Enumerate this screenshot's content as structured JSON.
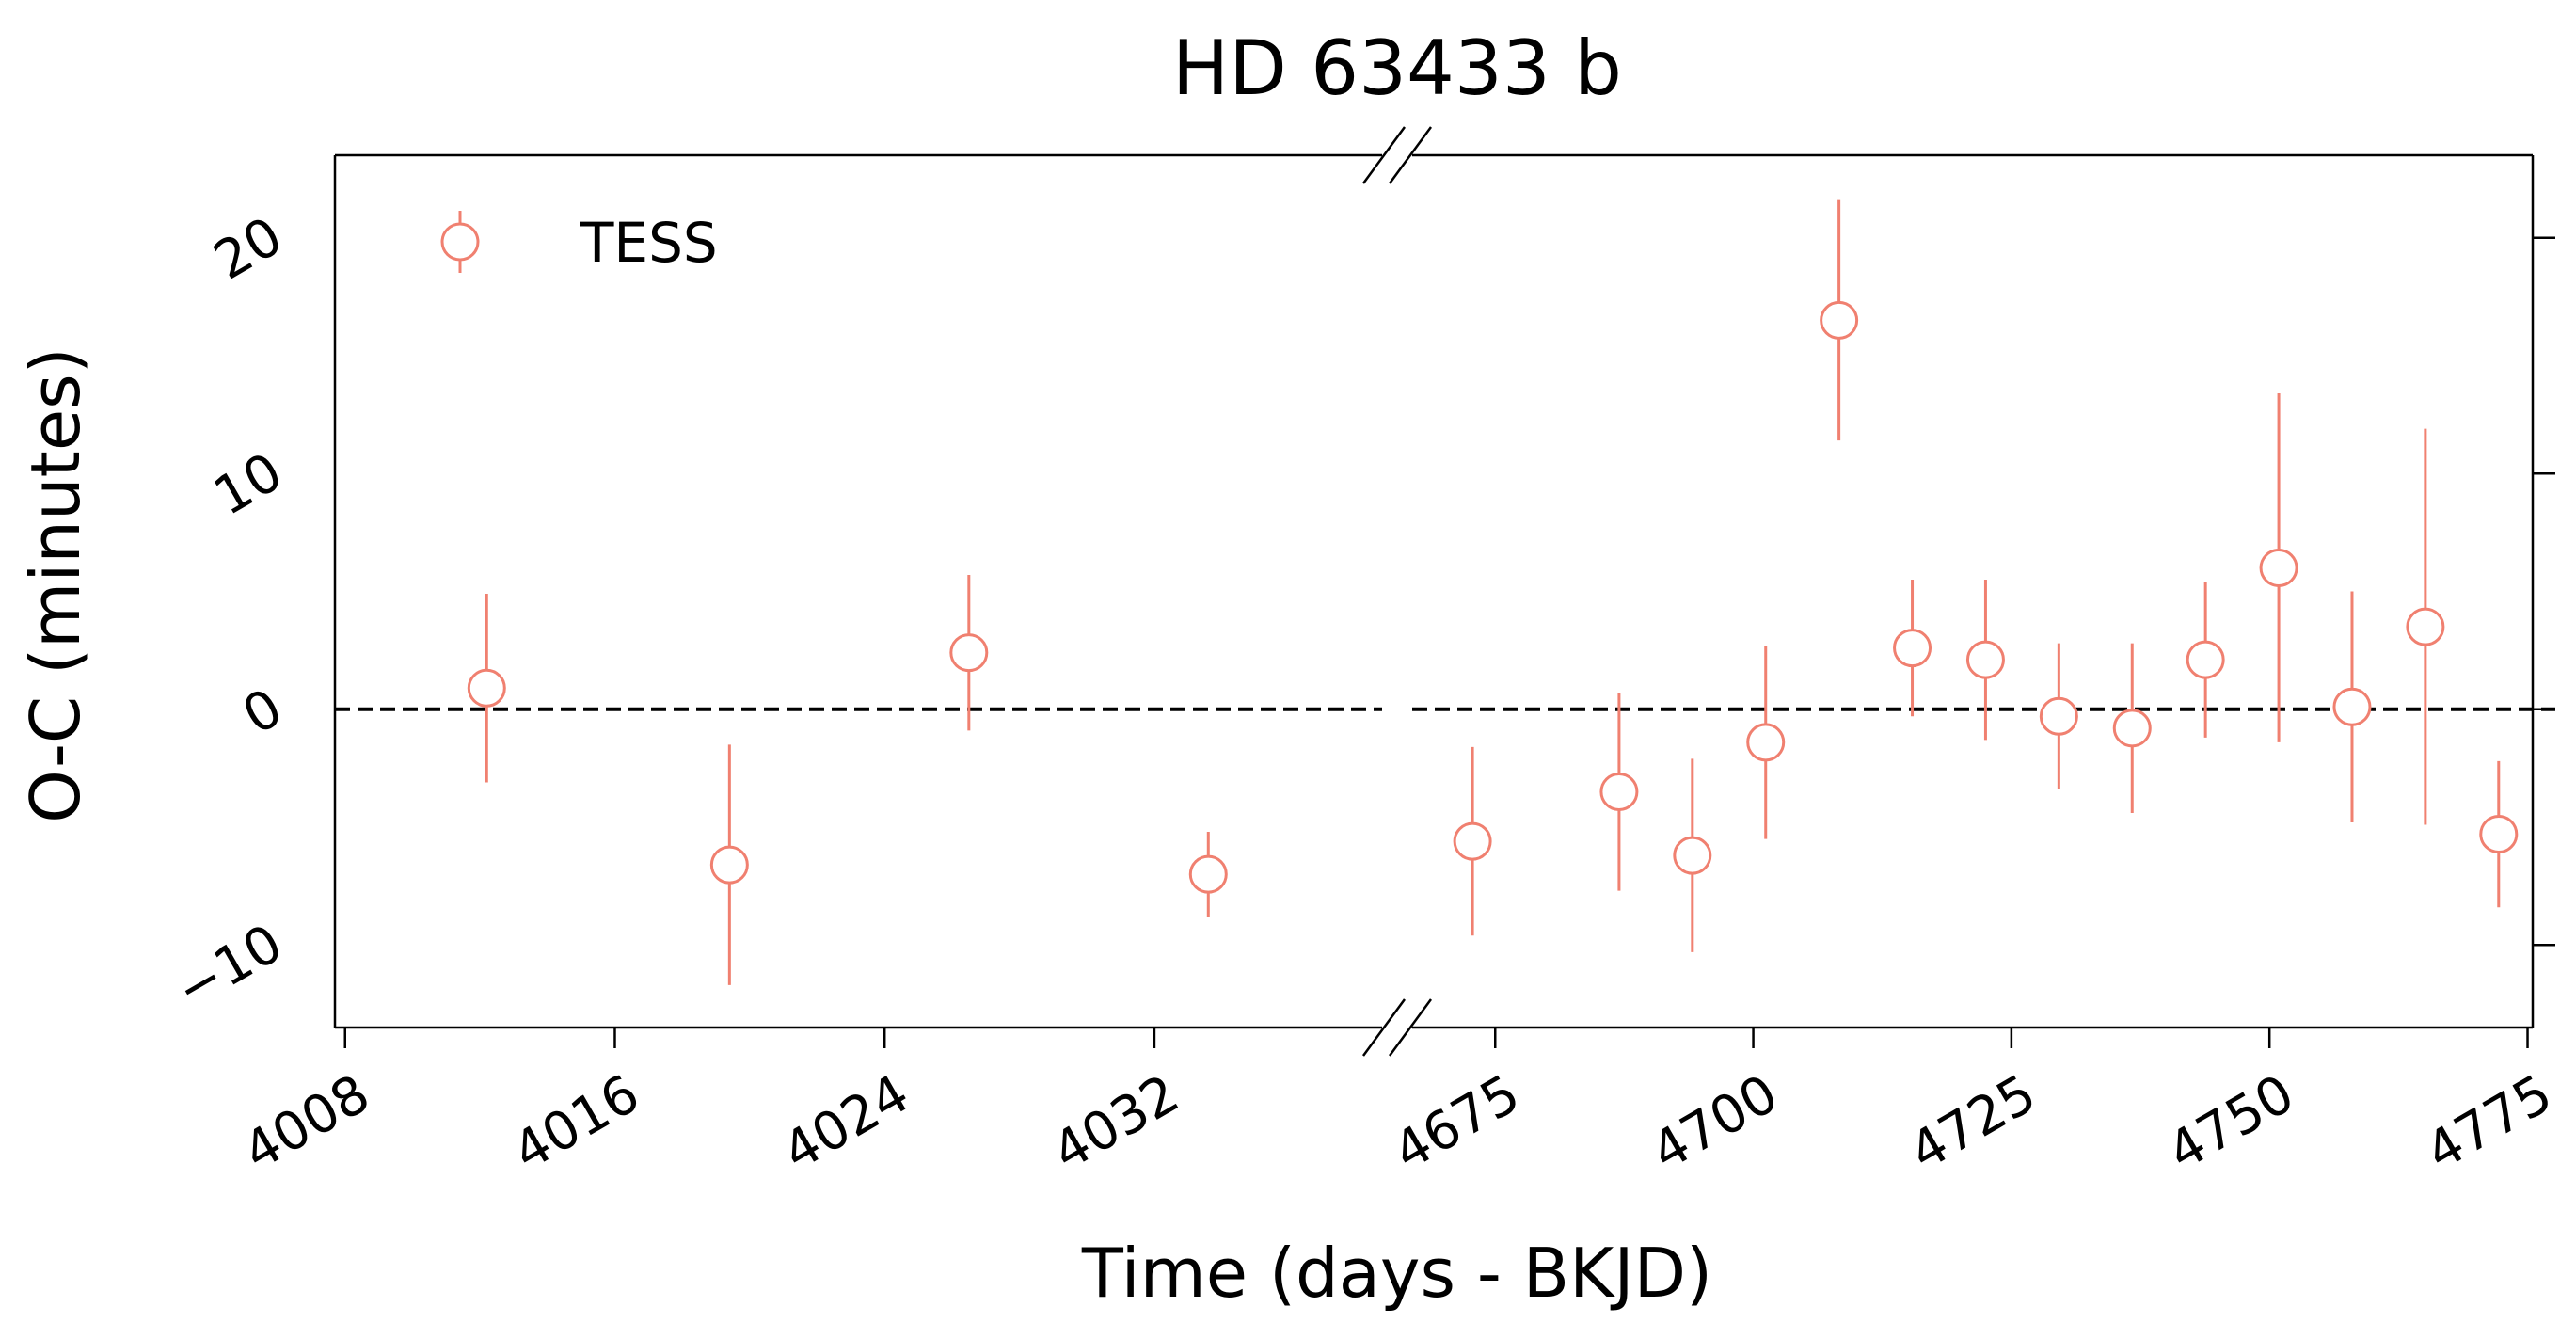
{
  "chart_data": {
    "type": "scatter",
    "title": "HD 63433 b",
    "xlabel": "Time (days - BKJD)",
    "ylabel": "O-C (minutes)",
    "ylim": [
      -13.5,
      23.5
    ],
    "yticks": [
      -10,
      0,
      10,
      20
    ],
    "ytick_labels": [
      "−10",
      "0",
      "10",
      "20"
    ],
    "reference_line": 0,
    "broken_x_axis": true,
    "grid": false,
    "legend": {
      "position": "top-left",
      "entries": [
        "TESS"
      ]
    },
    "marker_color": "#f08070",
    "panels": [
      {
        "xlim": [
          4007.7,
          4039.2
        ],
        "xticks": [
          4008,
          4016,
          4024,
          4032
        ],
        "xtick_labels": [
          "4008",
          "4016",
          "4024",
          "4032"
        ]
      },
      {
        "xlim": [
          4665.5,
          4775.5
        ],
        "xticks": [
          4675,
          4700,
          4725,
          4750,
          4775
        ],
        "xtick_labels": [
          "4675",
          "4700",
          "4725",
          "4750",
          "4775"
        ]
      }
    ],
    "series": [
      {
        "name": "TESS",
        "points": [
          {
            "x": 4012.2,
            "y": 0.9,
            "err": 4.0,
            "panel": 0
          },
          {
            "x": 4019.4,
            "y": -6.6,
            "err": 5.1,
            "panel": 0
          },
          {
            "x": 4026.5,
            "y": 2.4,
            "err": 3.3,
            "panel": 0
          },
          {
            "x": 4033.6,
            "y": -7.0,
            "err": 1.8,
            "panel": 0
          },
          {
            "x": 4672.8,
            "y": -5.6,
            "err": 4.0,
            "panel": 1
          },
          {
            "x": 4687.0,
            "y": -3.5,
            "err": 4.2,
            "panel": 1
          },
          {
            "x": 4694.1,
            "y": -6.2,
            "err": 4.1,
            "panel": 1
          },
          {
            "x": 4701.2,
            "y": -1.4,
            "err": 4.1,
            "panel": 1
          },
          {
            "x": 4708.3,
            "y": 16.5,
            "err": 5.1,
            "panel": 1
          },
          {
            "x": 4715.4,
            "y": 2.6,
            "err": 2.9,
            "panel": 1
          },
          {
            "x": 4722.5,
            "y": 2.1,
            "err": 3.4,
            "panel": 1
          },
          {
            "x": 4729.6,
            "y": -0.3,
            "err": 3.1,
            "panel": 1
          },
          {
            "x": 4736.7,
            "y": -0.8,
            "err": 3.6,
            "panel": 1
          },
          {
            "x": 4743.8,
            "y": 2.1,
            "err": 3.3,
            "panel": 1
          },
          {
            "x": 4750.9,
            "y": 6.0,
            "err": 7.4,
            "panel": 1
          },
          {
            "x": 4758.0,
            "y": 0.1,
            "err": 4.9,
            "panel": 1
          },
          {
            "x": 4765.1,
            "y": 3.5,
            "err": 8.4,
            "panel": 1
          },
          {
            "x": 4772.2,
            "y": -5.3,
            "err": 3.1,
            "panel": 1
          }
        ]
      }
    ]
  }
}
